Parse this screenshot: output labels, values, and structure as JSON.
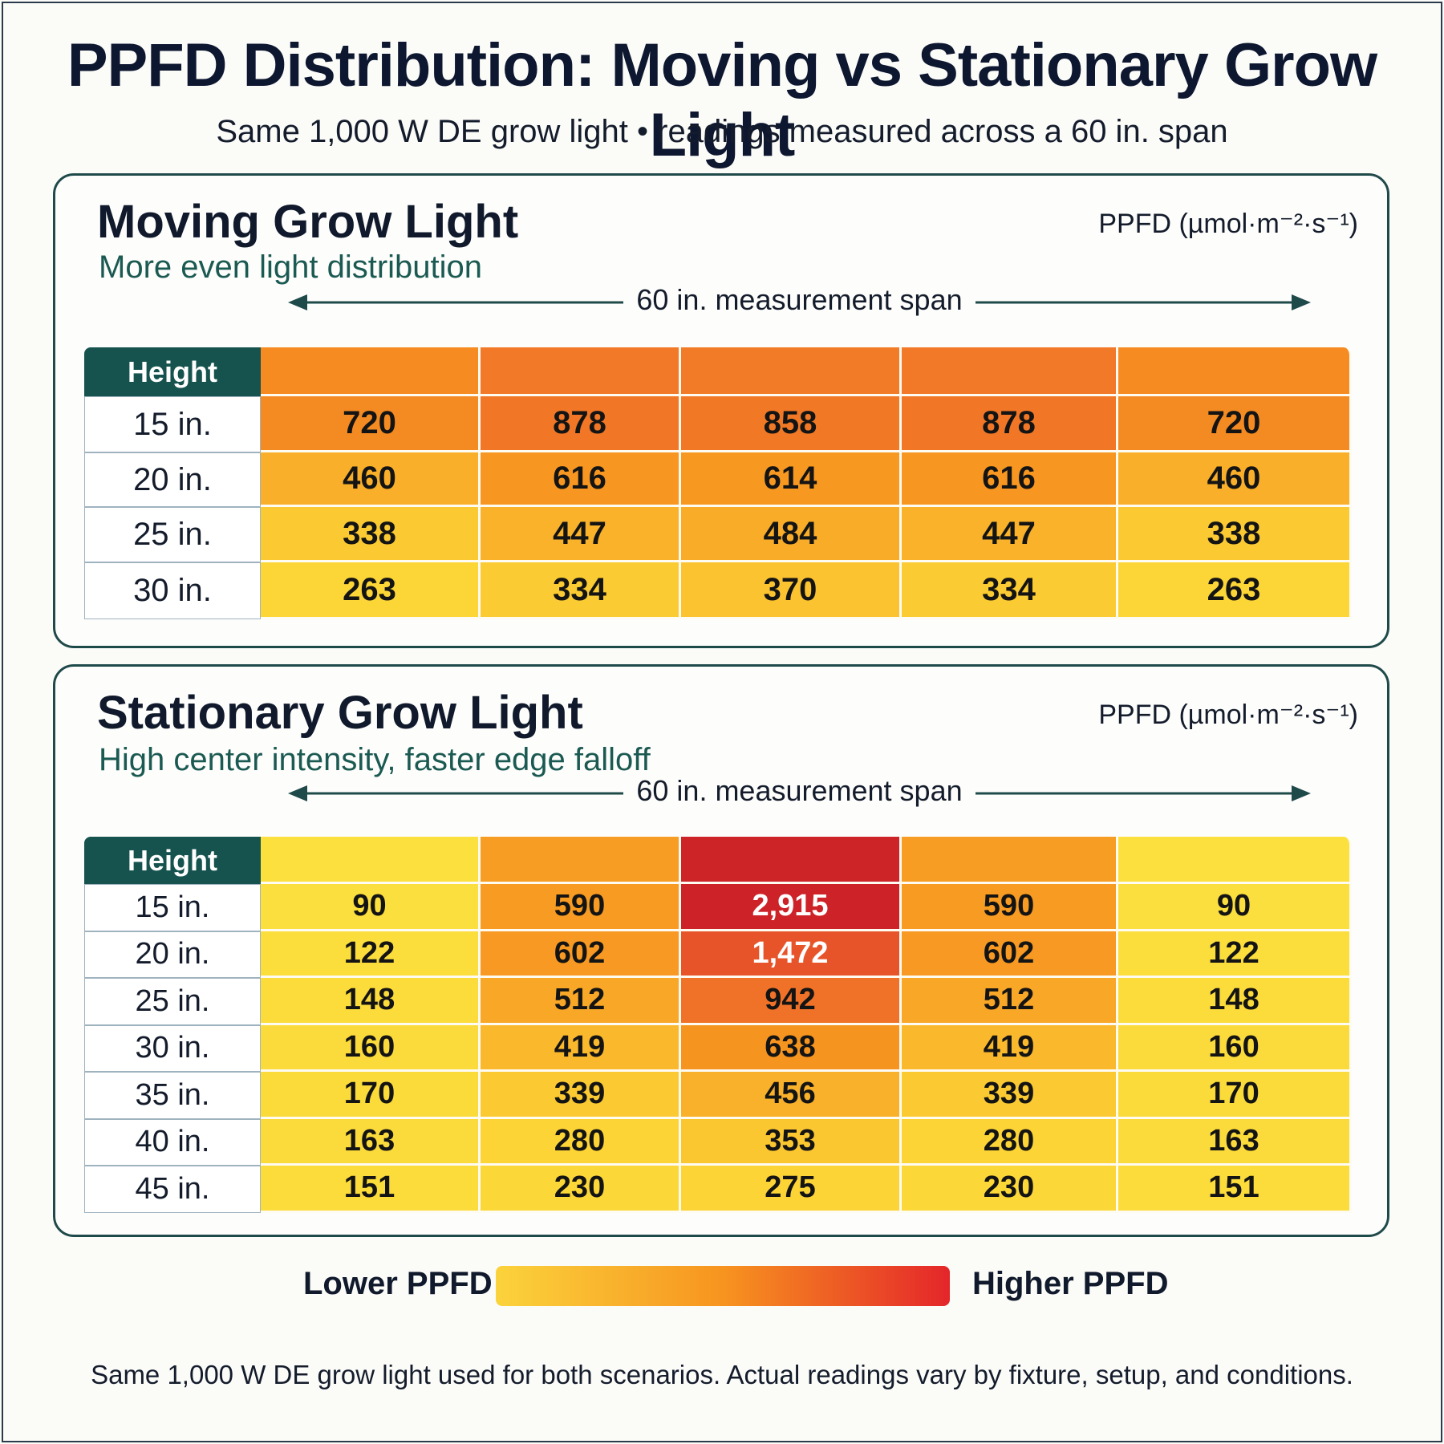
{
  "title": "PPFD Distribution: Moving vs Stationary Grow Light",
  "subtitle": "Same 1,000 W DE grow light • readings measured across a 60 in. span",
  "chart_data": [
    {
      "type": "heatmap",
      "title": "Moving Grow Light",
      "subtitle": "More even light distribution",
      "unit_label": "PPFD (µmol·m⁻²·s⁻¹)",
      "span_label": "60 in. measurement span",
      "row_header": "Height",
      "rows": [
        "15 in.",
        "20 in.",
        "25 in.",
        "30 in."
      ],
      "values": [
        [
          720,
          878,
          858,
          878,
          720
        ],
        [
          460,
          616,
          614,
          616,
          460
        ],
        [
          338,
          447,
          484,
          447,
          338
        ],
        [
          263,
          334,
          370,
          334,
          263
        ]
      ],
      "display": [
        [
          "720",
          "878",
          "858",
          "878",
          "720"
        ],
        [
          "460",
          "616",
          "614",
          "616",
          "460"
        ],
        [
          "338",
          "447",
          "484",
          "447",
          "338"
        ],
        [
          "263",
          "334",
          "370",
          "334",
          "263"
        ]
      ]
    },
    {
      "type": "heatmap",
      "title": "Stationary Grow Light",
      "subtitle": "High center intensity, faster edge falloff",
      "unit_label": "PPFD (µmol·m⁻²·s⁻¹)",
      "span_label": "60 in. measurement span",
      "row_header": "Height",
      "rows": [
        "15 in.",
        "20 in.",
        "25 in.",
        "30 in.",
        "35 in.",
        "40 in.",
        "45 in."
      ],
      "values": [
        [
          90,
          590,
          2915,
          590,
          90
        ],
        [
          122,
          602,
          1472,
          602,
          122
        ],
        [
          148,
          512,
          942,
          512,
          148
        ],
        [
          160,
          419,
          638,
          419,
          160
        ],
        [
          170,
          339,
          456,
          339,
          170
        ],
        [
          163,
          280,
          353,
          280,
          163
        ],
        [
          151,
          230,
          275,
          230,
          151
        ]
      ],
      "display": [
        [
          "90",
          "590",
          "2,915",
          "590",
          "90"
        ],
        [
          "122",
          "602",
          "1,472",
          "602",
          "122"
        ],
        [
          "148",
          "512",
          "942",
          "512",
          "148"
        ],
        [
          "160",
          "419",
          "638",
          "419",
          "160"
        ],
        [
          "170",
          "339",
          "456",
          "339",
          "170"
        ],
        [
          "163",
          "280",
          "353",
          "280",
          "163"
        ],
        [
          "151",
          "230",
          "275",
          "230",
          "151"
        ]
      ]
    }
  ],
  "legend": {
    "low_label": "Lower PPFD",
    "high_label": "Higher PPFD",
    "colors": [
      "#fbd33c",
      "#f7941f",
      "#e4262a"
    ]
  },
  "footnote": "Same 1,000 W DE grow light used for both scenarios. Actual readings vary by fixture, setup, and conditions."
}
